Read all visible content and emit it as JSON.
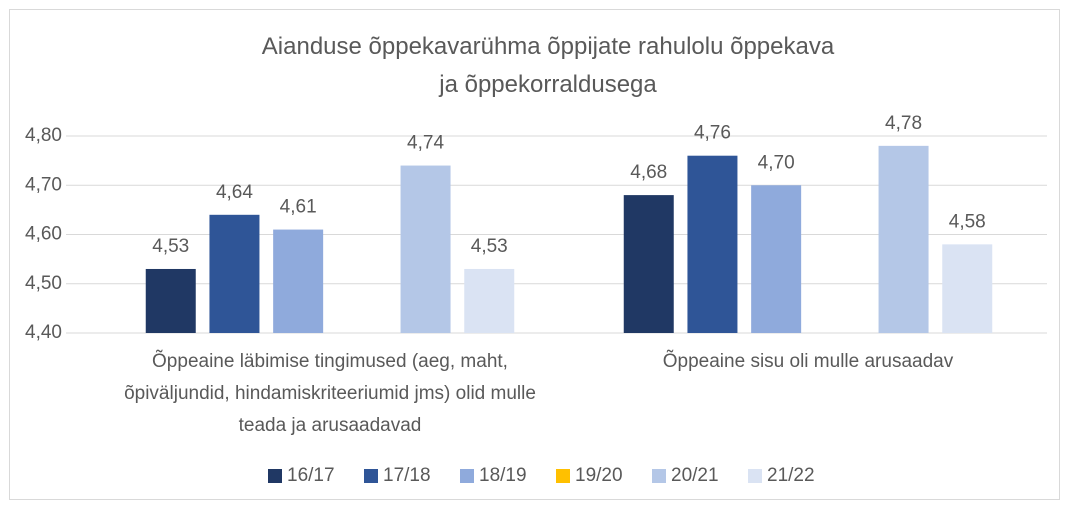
{
  "chart_data": {
    "type": "bar",
    "title": "Aianduse õppekavarühma õppijate rahulolu õppekava ja õppekorraldusega",
    "categories": [
      "Õppeaine läbimise tingimused (aeg, maht, õpiväljundid, hindamiskriteeriumid jms) olid mulle teada ja arusaadavad",
      "Õppeaine sisu oli mulle arusaadav"
    ],
    "series": [
      {
        "name": "16/17",
        "color": "#203864",
        "values": [
          4.53,
          4.68
        ],
        "value_labels": [
          "4,53",
          "4,68"
        ]
      },
      {
        "name": "17/18",
        "color": "#2f5597",
        "values": [
          4.64,
          4.76
        ],
        "value_labels": [
          "4,64",
          "4,76"
        ]
      },
      {
        "name": "18/19",
        "color": "#8faadc",
        "values": [
          4.61,
          4.7
        ],
        "value_labels": [
          "4,61",
          "4,70"
        ]
      },
      {
        "name": "19/20",
        "color": "#ffc000",
        "values": [
          null,
          null
        ],
        "value_labels": [
          null,
          null
        ]
      },
      {
        "name": "20/21",
        "color": "#b4c7e7",
        "values": [
          4.74,
          4.78
        ],
        "value_labels": [
          "4,74",
          "4,78"
        ]
      },
      {
        "name": "21/22",
        "color": "#dae3f3",
        "values": [
          4.53,
          4.58
        ],
        "value_labels": [
          "4,53",
          "4,58"
        ]
      }
    ],
    "ylim": [
      4.4,
      4.8
    ],
    "yticks": [
      {
        "value": 4.4,
        "label": "4,40"
      },
      {
        "value": 4.5,
        "label": "4,50"
      },
      {
        "value": 4.6,
        "label": "4,60"
      },
      {
        "value": 4.7,
        "label": "4,70"
      },
      {
        "value": 4.8,
        "label": "4,80"
      }
    ],
    "grid": true,
    "legend": "bottom"
  }
}
